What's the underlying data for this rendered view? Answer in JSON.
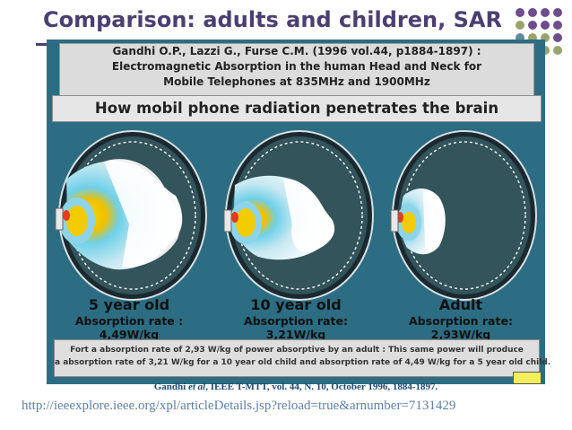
{
  "slide": {
    "title": "Comparison: adults and children, SAR"
  },
  "figure": {
    "header_line1": "Gandhi O.P., Lazzi G., Furse C.M. (1996 vol.44, p1884-1897) :",
    "header_line2": "Electromagnetic  Absorption in the human Head and Neck for",
    "header_line3": "Mobile Telephones at 835MHz and 1900MHz",
    "subtitle": "How mobil phone radiation penetrates the brain",
    "panels": [
      {
        "age": "5 year old",
        "rate": "Absorption rate : 4,49W/kg"
      },
      {
        "age": "10 year old",
        "rate": "Absorption rate: 3,21W/kg"
      },
      {
        "age": "Adult",
        "rate": "Absorption rate: 2,93W/kg"
      }
    ],
    "caption_line1": "Fort a absorption rate of  2,93 W/kg of power absorptive by an adult : This same power will produce",
    "caption_line2": "a absorption rate of 3,21 W/kg for a 10 year old child and absorption rate of 4,49 W/kg for a 5 year old child."
  },
  "citation": {
    "author": "Gandhi ",
    "etal": "et al",
    "rest": ", IEEE T-MTT, vol. 44, N. 10, October 1996, 1884-1897."
  },
  "link": {
    "url": "http://ieeexplore.ieee.org/xpl/articleDetails.jsp?reload=true&arnumber=7131429"
  },
  "colors": {
    "title": "#4b3f72",
    "figure_bg": "#2c6d83",
    "link": "#5f80a8",
    "dot_purple": "#6d4d8e",
    "dot_green": "#9aa36c",
    "dot_teal": "#5f8ba2"
  }
}
